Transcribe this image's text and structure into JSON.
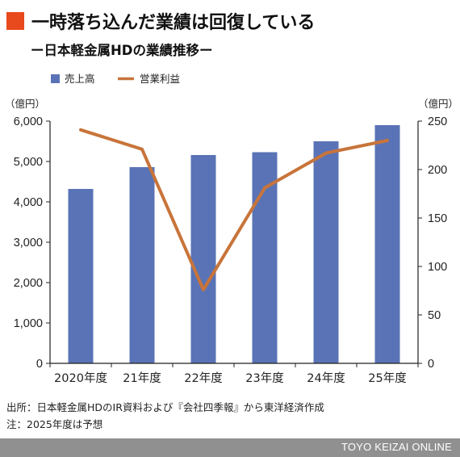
{
  "title": "一時落ち込んだ業績は回復している",
  "subtitle": "ー日本軽金属HDの業績推移ー",
  "colors": {
    "marker": "#e8491d",
    "bar": "#5a73b6",
    "line": "#c8743a",
    "footer_bg": "#909090"
  },
  "chart_data": {
    "type": "bar",
    "categories": [
      "2020年度",
      "21年度",
      "22年度",
      "23年度",
      "24年度",
      "25年度"
    ],
    "series": [
      {
        "name": "売上高",
        "type": "bar",
        "axis": "left",
        "values": [
          4320,
          4860,
          5160,
          5230,
          5500,
          5900
        ]
      },
      {
        "name": "営業利益",
        "type": "line",
        "axis": "right",
        "values": [
          241,
          221,
          76,
          181,
          217,
          230
        ]
      }
    ],
    "y_left": {
      "unit": "（億円）",
      "ylim": [
        0,
        6000
      ],
      "ticks": [
        0,
        1000,
        2000,
        3000,
        4000,
        5000,
        6000
      ],
      "tick_labels": [
        "0",
        "1,000",
        "2,000",
        "3,000",
        "4,000",
        "5,000",
        "6,000"
      ]
    },
    "y_right": {
      "unit": "（億円）",
      "ylim": [
        0,
        250
      ],
      "ticks": [
        0,
        50,
        100,
        150,
        200,
        250
      ],
      "tick_labels": [
        "0",
        "50",
        "100",
        "150",
        "200",
        "250"
      ]
    },
    "legend_position": "top-left",
    "grid": false
  },
  "notes": {
    "source": "出所：日本軽金属HDのIR資料および『会社四季報』から東洋経済作成",
    "note": "注：2025年度は予想"
  },
  "footer": {
    "brand": "TOYO KEIZAI ONLINE"
  }
}
